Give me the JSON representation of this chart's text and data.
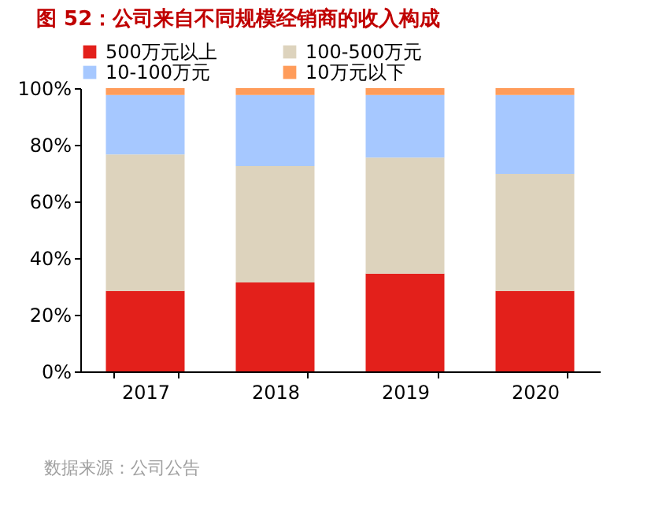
{
  "chart_data": {
    "type": "bar",
    "title": "图 52：公司来自不同规模经销商的收入构成",
    "categories": [
      "2017",
      "2018",
      "2019",
      "2020"
    ],
    "series": [
      {
        "name": "500万元以上",
        "color": "#e3201b",
        "values": [
          28.4,
          31.4,
          34.5,
          28.4
        ]
      },
      {
        "name": "100-500万元",
        "color": "#ddd3bd",
        "values": [
          48.2,
          41.1,
          41.0,
          41.3
        ]
      },
      {
        "name": "10-100万元",
        "color": "#a6c8ff",
        "values": [
          21.0,
          25.1,
          22.1,
          27.9
        ]
      },
      {
        "name": "10万元以下",
        "color": "#ff9c5a",
        "values": [
          2.4,
          2.4,
          2.4,
          2.4
        ]
      }
    ],
    "stacked": true,
    "ylim": [
      0,
      100
    ],
    "yticks": [
      {
        "value": 0,
        "label": "0%"
      },
      {
        "value": 20,
        "label": "20%"
      },
      {
        "value": 40,
        "label": "40%"
      },
      {
        "value": 60,
        "label": "60%"
      },
      {
        "value": 80,
        "label": "80%"
      },
      {
        "value": 100,
        "label": "100%"
      }
    ],
    "grid": false,
    "legend": "top",
    "annotations": [
      "数据来源：公司公告"
    ]
  }
}
